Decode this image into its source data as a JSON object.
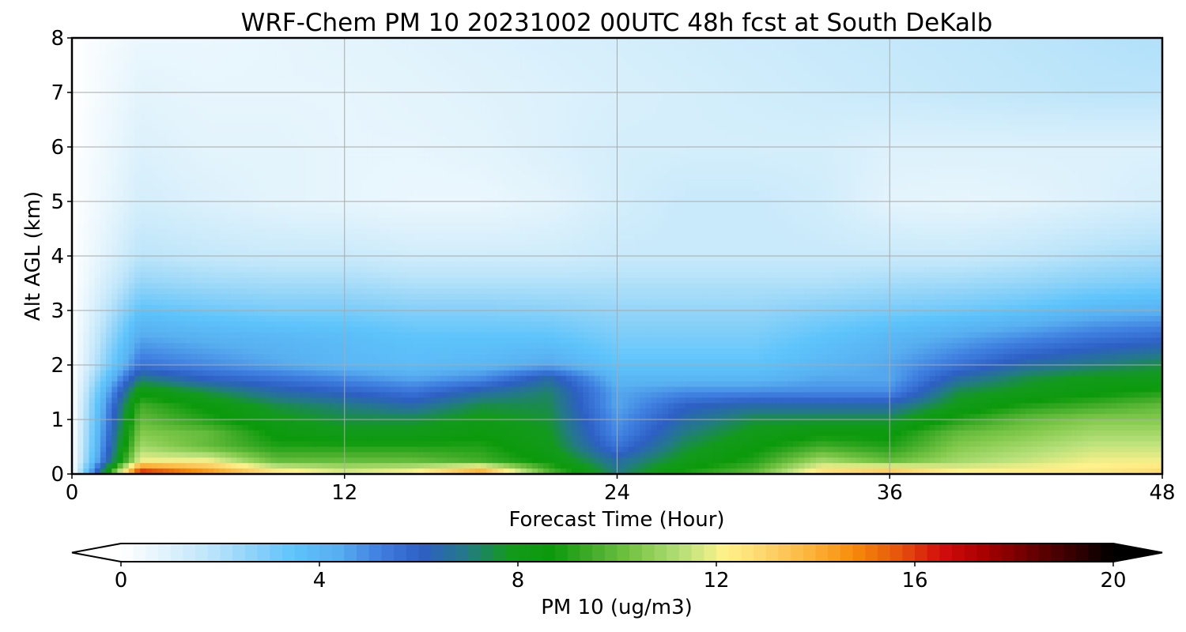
{
  "chart_data": {
    "type": "heatmap",
    "title": "WRF-Chem PM 10  20231002 00UTC 48h fcst at South DeKalb",
    "xlabel": "Forecast Time (Hour)",
    "ylabel": "Alt AGL (km)",
    "xlim": [
      0,
      48
    ],
    "ylim": [
      0,
      8
    ],
    "x_ticks": [
      "0",
      "12",
      "24",
      "36",
      "48"
    ],
    "y_ticks": [
      "0",
      "1",
      "2",
      "3",
      "4",
      "5",
      "6",
      "7",
      "8"
    ],
    "grid": true,
    "colorbar": {
      "label": "PM 10  (ug/m3)",
      "range": [
        0,
        20
      ],
      "ticks": [
        "0",
        "4",
        "8",
        "12",
        "16",
        "20"
      ],
      "extend": "both",
      "colors": [
        "#ffffff",
        "#e1f3fc",
        "#bfe6fa",
        "#8fd3f8",
        "#5ec4fb",
        "#58aff0",
        "#3f7fe0",
        "#2d5fc4",
        "#237a86",
        "#139a1c",
        "#0b9a0b",
        "#47ae2c",
        "#7fc84a",
        "#b6e07a",
        "#fff28c",
        "#fdd36a",
        "#fbb33a",
        "#f68b0a",
        "#e6560c",
        "#d20e0c",
        "#a80000",
        "#6e0000",
        "#3a0000",
        "#000000"
      ]
    },
    "grid_x_hours": [
      0,
      3,
      6,
      9,
      12,
      15,
      18,
      21,
      24,
      27,
      30,
      33,
      36,
      39,
      42,
      45,
      48
    ],
    "grid_y_km": [
      0,
      0.25,
      0.5,
      0.75,
      1,
      1.25,
      1.5,
      1.75,
      2,
      2.5,
      3,
      3.5,
      4,
      5,
      6,
      7,
      8
    ],
    "values": [
      [
        0,
        17,
        15,
        13,
        12,
        12.5,
        15,
        10,
        7,
        9,
        10,
        13,
        14,
        12.5,
        12.5,
        12.5,
        13
      ],
      [
        0,
        12,
        12,
        10,
        10,
        10,
        9.5,
        8.5,
        6.5,
        8,
        9,
        11,
        10,
        11,
        11.5,
        12,
        12
      ],
      [
        0,
        11,
        10,
        9,
        9,
        9,
        9,
        8,
        5.5,
        7.5,
        8.5,
        9.5,
        9,
        10.5,
        11,
        11.5,
        11.5
      ],
      [
        0,
        10.5,
        10,
        8.5,
        8,
        8,
        8.5,
        7.8,
        5,
        7,
        8,
        8.5,
        8.5,
        10,
        10.5,
        11,
        11
      ],
      [
        0,
        10,
        9,
        8,
        7.5,
        7.5,
        8,
        7.6,
        4.8,
        6.5,
        7.5,
        7.5,
        7.5,
        9,
        10,
        10.5,
        10.5
      ],
      [
        0,
        9.5,
        8.5,
        7.5,
        7,
        6.5,
        7.5,
        7.4,
        4.5,
        6,
        6.5,
        6.5,
        6.5,
        8,
        9,
        9.5,
        10
      ],
      [
        0,
        8.5,
        7.5,
        6.5,
        6,
        5.5,
        6.5,
        7.2,
        4.5,
        5,
        5,
        5,
        5,
        7.5,
        8,
        8.5,
        9
      ],
      [
        0,
        7,
        6,
        5.5,
        5,
        4.5,
        5,
        6.5,
        4,
        4,
        4,
        4.5,
        4.5,
        6.5,
        7.5,
        8,
        8
      ],
      [
        0,
        5.5,
        5,
        4.5,
        4,
        3.8,
        4,
        4.5,
        3.5,
        3.5,
        3.5,
        4,
        4.5,
        5.5,
        6.5,
        7,
        7.5
      ],
      [
        0,
        4.5,
        4.2,
        4,
        3.8,
        3.5,
        3.5,
        3.5,
        3,
        3,
        3,
        3.5,
        4,
        4.5,
        5,
        5.5,
        5.8
      ],
      [
        0,
        3.5,
        3.2,
        3,
        3,
        2.8,
        2.8,
        2.7,
        2.5,
        2.5,
        2.5,
        2.8,
        3,
        3.2,
        3.5,
        4,
        4.2
      ],
      [
        0,
        2.5,
        2.3,
        2.2,
        2.2,
        2,
        2,
        2,
        2,
        2,
        2,
        2,
        2.2,
        2.3,
        2.5,
        2.8,
        3
      ],
      [
        0,
        1.8,
        1.6,
        1.5,
        1.5,
        1.3,
        1.3,
        1.3,
        1.5,
        1.5,
        1.5,
        1.5,
        1.5,
        1.5,
        1.7,
        2,
        2.2
      ],
      [
        0,
        1.2,
        1,
        0.8,
        0.7,
        0.6,
        0.6,
        0.8,
        1.2,
        1.5,
        1.5,
        1.3,
        0.8,
        0.7,
        0.8,
        1,
        1.2
      ],
      [
        0,
        1,
        0.8,
        0.8,
        0.7,
        0.7,
        0.8,
        1,
        1.2,
        1.2,
        1.2,
        1.2,
        1,
        1,
        1,
        1,
        1
      ],
      [
        0,
        0.8,
        0.7,
        0.7,
        0.7,
        0.8,
        0.9,
        1,
        1.1,
        1.2,
        1.3,
        1.4,
        1.5,
        1.6,
        1.7,
        1.8,
        1.8
      ],
      [
        0,
        0.6,
        0.6,
        0.7,
        0.8,
        0.9,
        1,
        1.1,
        1.2,
        1.3,
        1.4,
        1.5,
        1.6,
        1.7,
        1.8,
        1.9,
        2
      ]
    ]
  }
}
